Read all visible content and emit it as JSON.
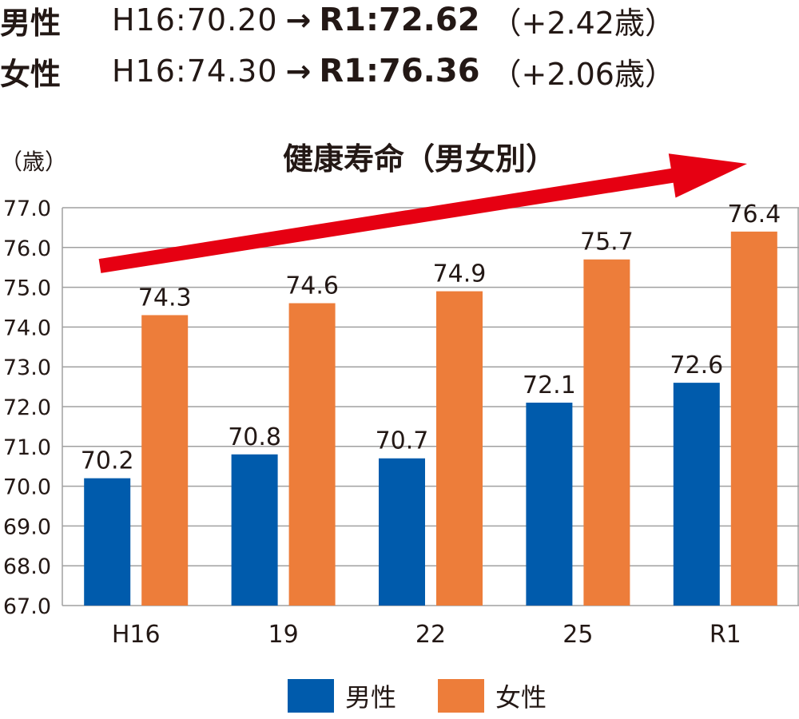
{
  "summary": [
    {
      "sex": "男性",
      "from": "H16:70.20",
      "arrow": "→",
      "to": "R1:72.62",
      "diff": "（+2.42歳）"
    },
    {
      "sex": "女性",
      "from": "H16:74.30",
      "arrow": "→",
      "to": "R1:76.36",
      "diff": "（+2.06歳）"
    }
  ],
  "colors": {
    "male": "#005bac",
    "female": "#ed7d3a",
    "arrow": "#e60012",
    "grid": "#a0a0a0"
  },
  "chart_data": {
    "type": "bar",
    "title": "健康寿命（男女別）",
    "ylabel": "（歳）",
    "xlabel": "",
    "categories": [
      "H16",
      "19",
      "22",
      "25",
      "R1"
    ],
    "series": [
      {
        "name": "男性",
        "values": [
          70.2,
          70.8,
          70.7,
          72.1,
          72.6
        ]
      },
      {
        "name": "女性",
        "values": [
          74.3,
          74.6,
          74.9,
          75.7,
          76.4
        ]
      }
    ],
    "ylim": [
      67.0,
      77.0
    ],
    "yticks": [
      "67.0",
      "68.0",
      "69.0",
      "70.0",
      "71.0",
      "72.0",
      "73.0",
      "74.0",
      "75.0",
      "76.0",
      "77.0"
    ],
    "grid": true,
    "legend": "bottom-center",
    "trend_arrow": "up-right"
  }
}
